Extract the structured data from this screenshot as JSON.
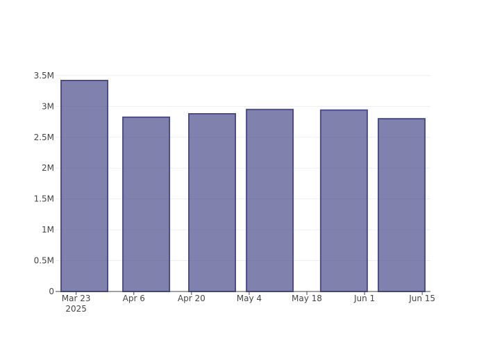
{
  "chart_data": {
    "type": "bar",
    "x": [
      "2025-03-25",
      "2025-04-09",
      "2025-04-25",
      "2025-05-09",
      "2025-05-27",
      "2025-06-10"
    ],
    "values": [
      3420000,
      2825000,
      2880000,
      2950000,
      2940000,
      2800000
    ],
    "color": "#4c4c8c",
    "xlim": [
      "2025-03-18",
      "2025-06-17"
    ],
    "xticks": [
      {
        "value": "2025-03-23",
        "label": "Mar 23\n2025"
      },
      {
        "value": "2025-04-06",
        "label": "Apr 6"
      },
      {
        "value": "2025-04-20",
        "label": "Apr 20"
      },
      {
        "value": "2025-05-04",
        "label": "May 4"
      },
      {
        "value": "2025-05-18",
        "label": "May 18"
      },
      {
        "value": "2025-06-01",
        "label": "Jun 1"
      },
      {
        "value": "2025-06-15",
        "label": "Jun 15"
      }
    ],
    "ylim": [
      0,
      3600000
    ],
    "yticks": [
      0,
      {
        "value": 500000,
        "label": "0.5M"
      },
      {
        "value": 1000000,
        "label": "1M"
      },
      {
        "value": 1500000,
        "label": "1.5M"
      },
      {
        "value": 2000000,
        "label": "2M"
      },
      {
        "value": 2500000,
        "label": "2.5M"
      },
      {
        "value": 3000000,
        "label": "3M"
      },
      {
        "value": 3500000,
        "label": "3.5M"
      }
    ],
    "grid": true
  }
}
